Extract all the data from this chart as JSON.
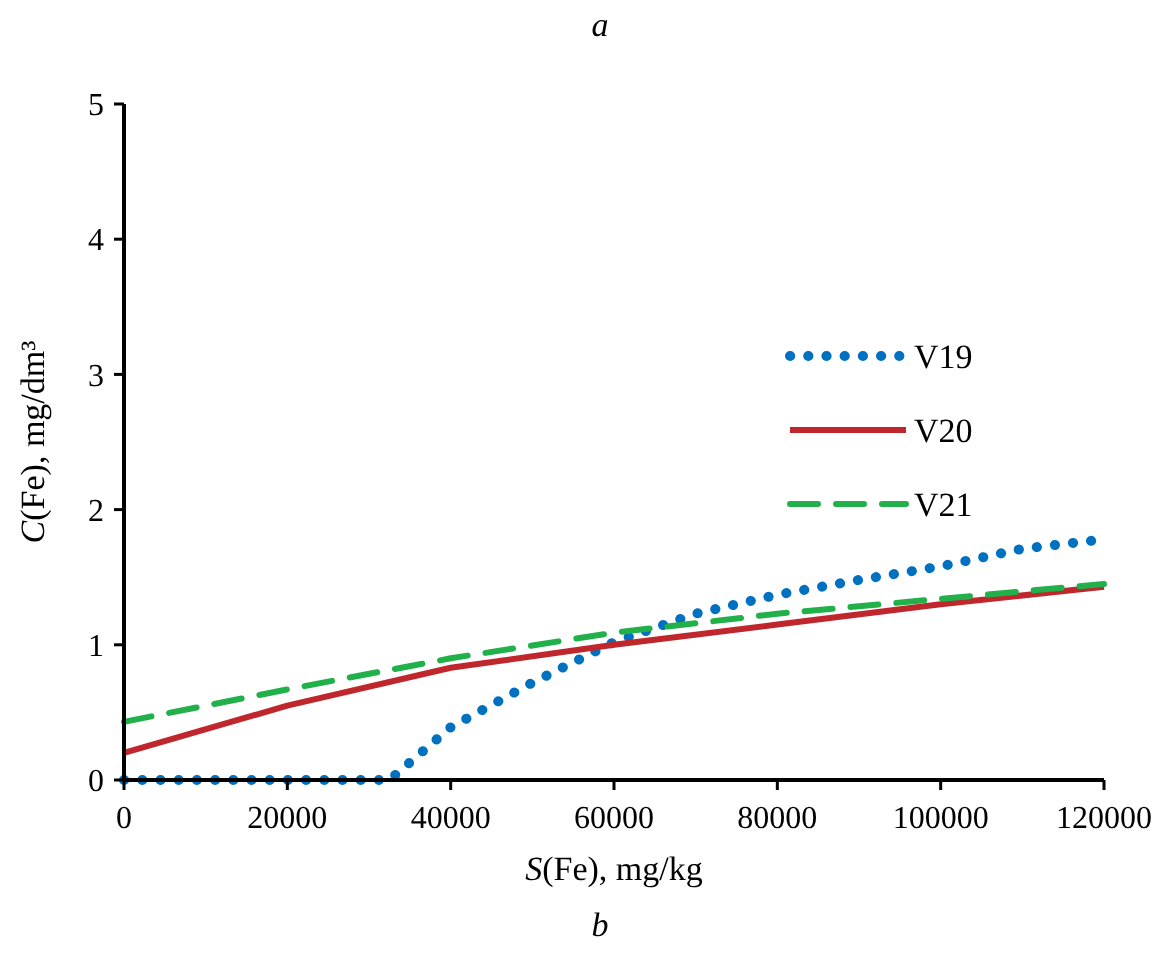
{
  "chart_data": {
    "type": "line",
    "title": "a",
    "xlabel": "S(Fe), mg/kg",
    "ylabel": "C(Fe), mg/dm³",
    "annotations": [
      "b"
    ],
    "xlim": [
      0,
      120000
    ],
    "xticks": [
      0,
      20000,
      40000,
      60000,
      80000,
      100000,
      120000
    ],
    "ylim": [
      0,
      5
    ],
    "yticks": [
      0,
      1,
      2,
      3,
      4,
      5
    ],
    "grid": false,
    "legend": "top right",
    "series": [
      {
        "name": "V19",
        "color": "#0070c0",
        "line_style": "dotted",
        "x": [
          0,
          10000,
          20000,
          30000,
          32500,
          40000,
          50000,
          60000,
          70000,
          80000,
          90000,
          100000,
          110000,
          120000
        ],
        "values": [
          0,
          0,
          0,
          0,
          0,
          0.39,
          0.72,
          1.02,
          1.23,
          1.37,
          1.48,
          1.58,
          1.71,
          1.78
        ]
      },
      {
        "name": "V20",
        "color": "#c0272d",
        "line_style": "solid",
        "x": [
          0,
          20000,
          40000,
          60000,
          80000,
          100000,
          120000
        ],
        "values": [
          0.2,
          0.55,
          0.83,
          1.0,
          1.15,
          1.3,
          1.43
        ]
      },
      {
        "name": "V21",
        "color": "#22b04b",
        "line_style": "dashed",
        "x": [
          0,
          20000,
          40000,
          60000,
          80000,
          100000,
          120000
        ],
        "values": [
          0.43,
          0.67,
          0.9,
          1.09,
          1.23,
          1.34,
          1.45
        ]
      }
    ]
  }
}
